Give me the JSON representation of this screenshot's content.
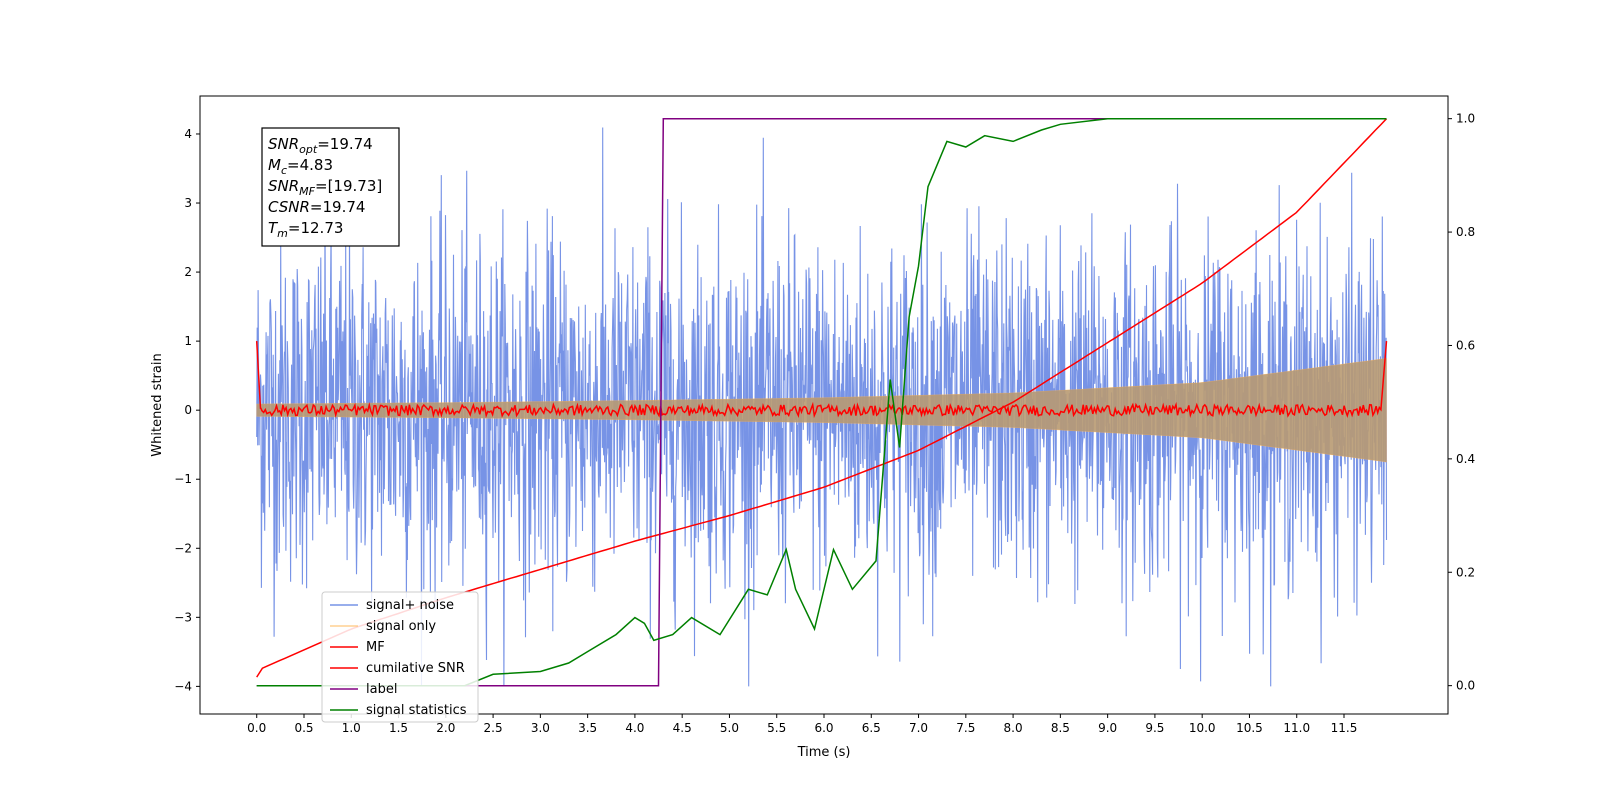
{
  "chart_data": {
    "type": "line",
    "xlabel": "Time (s)",
    "ylabel": "Whitened strain",
    "xlim": [
      -0.6,
      12.6
    ],
    "ylim": [
      -4.4,
      4.55
    ],
    "y2lim": [
      -0.05,
      1.04
    ],
    "xticks": [
      "0.0",
      "0.5",
      "1.0",
      "1.5",
      "2.0",
      "2.5",
      "3.0",
      "3.5",
      "4.0",
      "4.5",
      "5.0",
      "5.5",
      "6.0",
      "6.5",
      "7.0",
      "7.5",
      "8.0",
      "8.5",
      "9.0",
      "9.5",
      "10.0",
      "10.5",
      "11.0",
      "11.5"
    ],
    "yticks": [
      -4,
      -3,
      -2,
      -1,
      0,
      1,
      2,
      3,
      4
    ],
    "y2ticks": [
      "0.0",
      "0.2",
      "0.4",
      "0.6",
      "0.8",
      "1.0"
    ],
    "grid": false,
    "legend_position": "lower-left",
    "annotation": [
      {
        "base": "SNR",
        "sub": "opt",
        "rest": "=19.74"
      },
      {
        "base": "M",
        "sub": "c",
        "rest": "=4.83"
      },
      {
        "base": "SNR",
        "sub": "MF",
        "rest": "=[19.73]"
      },
      {
        "base": "CSNR",
        "sub": "",
        "rest": "=19.74"
      },
      {
        "base": "T",
        "sub": "m",
        "rest": "=12.73"
      }
    ],
    "series": [
      {
        "name": "signal+ noise",
        "axis": "left",
        "color": "#4a6fde",
        "description_values": {
          "x_start": 0.0,
          "x_end": 11.95,
          "amplitude": "about ±2.6, peaks to ±4.2"
        }
      },
      {
        "name": "signal only",
        "axis": "left",
        "color": "#ffb04a",
        "envelope": {
          "x": [
            0.0,
            2.0,
            4.0,
            6.0,
            8.0,
            10.0,
            11.95
          ],
          "y": [
            0.09,
            0.11,
            0.14,
            0.18,
            0.25,
            0.4,
            0.75
          ]
        }
      },
      {
        "name": "MF",
        "axis": "left",
        "color": "#ff0000",
        "edge_values": {
          "start": 1.0,
          "end": 1.0,
          "baseline": 0.0,
          "ripple": 0.08
        }
      },
      {
        "name": "cumilative SNR",
        "axis": "right",
        "color": "#ff0000",
        "x": [
          0.0,
          0.05,
          1.0,
          2.0,
          3.0,
          4.0,
          5.0,
          6.0,
          7.0,
          8.0,
          9.0,
          10.0,
          11.0,
          11.95
        ],
        "y": [
          0.015,
          0.03,
          0.1,
          0.155,
          0.205,
          0.255,
          0.3,
          0.35,
          0.415,
          0.5,
          0.605,
          0.71,
          0.835,
          1.0
        ]
      },
      {
        "name": "label",
        "axis": "right",
        "color": "#800080",
        "x": [
          0.0,
          4.25,
          4.3,
          11.95
        ],
        "y": [
          0.0,
          0.0,
          1.0,
          1.0
        ]
      },
      {
        "name": "signal statistics",
        "axis": "right",
        "color": "#008000",
        "x": [
          0.0,
          2.2,
          2.5,
          3.0,
          3.3,
          3.5,
          3.8,
          4.0,
          4.1,
          4.2,
          4.4,
          4.6,
          4.9,
          5.2,
          5.4,
          5.6,
          5.7,
          5.9,
          6.1,
          6.3,
          6.55,
          6.7,
          6.8,
          6.9,
          7.0,
          7.1,
          7.3,
          7.5,
          7.7,
          8.0,
          8.3,
          8.5,
          9.0,
          10.0,
          11.95
        ],
        "y": [
          0.0,
          0.0,
          0.02,
          0.025,
          0.04,
          0.06,
          0.09,
          0.12,
          0.11,
          0.08,
          0.09,
          0.12,
          0.09,
          0.17,
          0.16,
          0.24,
          0.17,
          0.1,
          0.24,
          0.17,
          0.22,
          0.54,
          0.42,
          0.65,
          0.74,
          0.88,
          0.96,
          0.95,
          0.97,
          0.96,
          0.98,
          0.99,
          1.0,
          1.0,
          1.0
        ]
      }
    ]
  }
}
